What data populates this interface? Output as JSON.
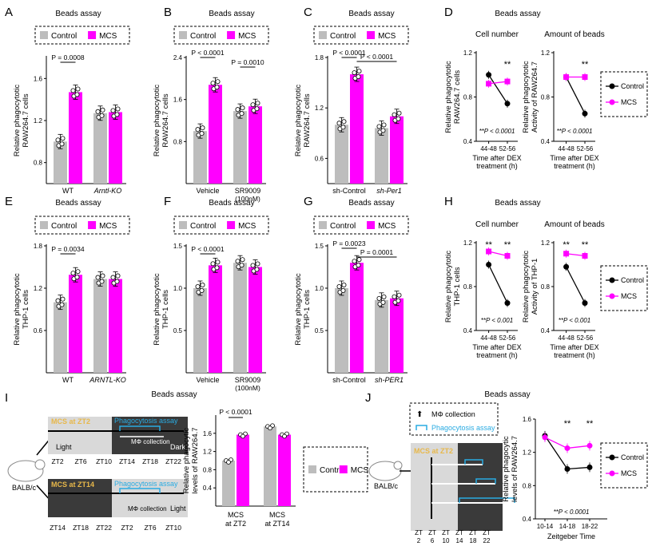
{
  "colors": {
    "control": "#bdbdbd",
    "mcs": "#ff00ff",
    "dark": "#3a3a3a",
    "light": "#d9d9d9",
    "cyan": "#29abe2",
    "gold": "#e8b84a"
  },
  "legend": {
    "control": "Control",
    "mcs": "MCS"
  },
  "panels": {
    "A": {
      "letter": "A",
      "title": "Beads assay",
      "ylabel1": "Relative phagocytotic",
      "ylabel2": "RAW264.7 cells",
      "xlabels": [
        "WT",
        "Arntl-KO"
      ],
      "ticks": [
        "0.8",
        "1.2",
        "1.6"
      ],
      "ylim": [
        0.6,
        1.8
      ],
      "sig": [
        "P = 0.0008"
      ]
    },
    "B": {
      "letter": "B",
      "title": "Beads assay",
      "ylabel1": "Relative phagocytotic",
      "ylabel2": "RAW264.7 cells",
      "xlabels": [
        "Vehicle",
        "SR9009"
      ],
      "xsub": "(100nM)",
      "ticks": [
        "0.8",
        "1.6",
        "2.4"
      ],
      "ylim": [
        0,
        2.4
      ],
      "sig": [
        "P < 0.0001",
        "P = 0.0010"
      ]
    },
    "C": {
      "letter": "C",
      "title": "Beads assay",
      "ylabel1": "Relative phagocytotic",
      "ylabel2": "RAW264.7 cells",
      "xlabels": [
        "sh-Control",
        "sh-Per1"
      ],
      "ticks": [
        "0.6",
        "1.2",
        "1.8"
      ],
      "ylim": [
        0.3,
        1.8
      ],
      "sig": [
        "P < 0.0001",
        "P < 0.0001"
      ]
    },
    "D": {
      "letter": "D",
      "title": "Beads assay",
      "left_title": "Cell number",
      "right_title": "Amount of beads",
      "left_ylabel1": "Relative phagocytotic",
      "left_ylabel2": "RAW264.7 cells",
      "right_ylabel1": "Relative phagocytotic",
      "right_ylabel2": "Activity of RAW264.7",
      "ticks": [
        "0.4",
        "0.8",
        "1.2"
      ],
      "xticks": [
        "44-48",
        "52-56"
      ],
      "xlabel1": "Time after DEX",
      "xlabel2": "treatment (h)",
      "stars": "**",
      "pnote": "**P < 0.0001"
    },
    "E": {
      "letter": "E",
      "title": "Beads assay",
      "ylabel1": "Relative phagocytotic",
      "ylabel2": "THP-1 cells",
      "xlabels": [
        "WT",
        "ARNTL-KO"
      ],
      "ticks": [
        "0.6",
        "1.2",
        "1.8"
      ],
      "ylim": [
        0,
        1.8
      ],
      "sig": [
        "P = 0.0034"
      ]
    },
    "F": {
      "letter": "F",
      "title": "Beads assay",
      "ylabel1": "Relative phagocytotic",
      "ylabel2": "THP-1  cells",
      "xlabels": [
        "Vehicle",
        "SR9009"
      ],
      "xsub": "(100nM)",
      "ticks": [
        "0.5",
        "1.0",
        "1.5"
      ],
      "ylim": [
        0,
        1.5
      ],
      "sig": [
        "P < 0.0001"
      ]
    },
    "G": {
      "letter": "G",
      "title": "Beads assay",
      "ylabel1": "Relative phagocytotic",
      "ylabel2": "THP-1  cells",
      "xlabels": [
        "sh-Control",
        "sh-PER1"
      ],
      "ticks": [
        "0.5",
        "1.0",
        "1.5"
      ],
      "ylim": [
        0,
        1.5
      ],
      "sig": [
        "P = 0.0023",
        "P = 0.0001"
      ]
    },
    "H": {
      "letter": "H",
      "title": "Beads assay",
      "left_title": "Cell number",
      "right_title": "Amount of beads",
      "left_ylabel1": "Relative phagocytotic",
      "left_ylabel2": "THP-1  cells",
      "right_ylabel1": "Relative phagocytotic",
      "right_ylabel2": "Activity of THP-1",
      "ticks": [
        "0.4",
        "0.8",
        "1.2"
      ],
      "xticks": [
        "44-48",
        "52-56"
      ],
      "xlabel1": "Time after DEX",
      "xlabel2": "treatment (h)",
      "stars": "**",
      "pnote": "**P < 0.001"
    },
    "I": {
      "letter": "I",
      "title": "Beads assay",
      "mouse": "BALB/c",
      "mcs_zt2": "MCS at ZT2",
      "mcs_zt14": "MCS at ZT14",
      "assay": "Phagocytosis assay",
      "collection": "MΦ collection",
      "light": "Light",
      "dark": "Dark",
      "zt_top": [
        "ZT2",
        "ZT6",
        "ZT10",
        "ZT14",
        "ZT18",
        "ZT22"
      ],
      "zt_bottom": [
        "ZT14",
        "ZT18",
        "ZT22",
        "ZT2",
        "ZT6",
        "ZT10"
      ],
      "ylabel1": "Relative phagocytic",
      "ylabel2": "levels of RAW264.7",
      "ticks": [
        "0.4",
        "0.8",
        "1.2",
        "1.6"
      ],
      "ylim": [
        0,
        2.0
      ],
      "xlabels": [
        "MCS",
        "MCS"
      ],
      "xsub": [
        "at ZT2",
        "at ZT14"
      ],
      "sig": [
        "P < 0.0001"
      ]
    },
    "J": {
      "letter": "J",
      "title": "Beads assay",
      "mouse": "BALB/c",
      "collection": "MΦ collection",
      "assay": "Phagocytosis assay",
      "mcs_zt2": "MCS at ZT2",
      "zt_top": [
        "ZT",
        "ZT",
        "ZT",
        "ZT",
        "ZT",
        "ZT"
      ],
      "zt_num": [
        "2",
        "6",
        "10",
        "14",
        "18",
        "22"
      ],
      "ylabel1": "Relative phagocytic",
      "ylabel2": "levels of RAW264.7",
      "ticks": [
        "0.4",
        "0.8",
        "1.2",
        "1.6"
      ],
      "xticks": [
        "10-14",
        "14-18",
        "18-22"
      ],
      "xlabel": "Zeitgeber Time",
      "stars": "**",
      "pnote": "**P < 0.0001"
    }
  },
  "chart_data": [
    {
      "panel": "A",
      "type": "bar",
      "categories": [
        "WT",
        "Arntl-KO"
      ],
      "series": [
        {
          "name": "Control",
          "values": [
            1.0,
            1.27
          ]
        },
        {
          "name": "MCS",
          "values": [
            1.47,
            1.28
          ]
        }
      ],
      "ylim": [
        0.6,
        1.8
      ]
    },
    {
      "panel": "B",
      "type": "bar",
      "categories": [
        "Vehicle",
        "SR9009 (100nM)"
      ],
      "series": [
        {
          "name": "Control",
          "values": [
            1.0,
            1.38
          ]
        },
        {
          "name": "MCS",
          "values": [
            1.88,
            1.47
          ]
        }
      ],
      "ylim": [
        0,
        2.4
      ]
    },
    {
      "panel": "C",
      "type": "bar",
      "categories": [
        "sh-Control",
        "sh-Per1"
      ],
      "series": [
        {
          "name": "Control",
          "values": [
            1.0,
            0.96
          ]
        },
        {
          "name": "MCS",
          "values": [
            1.6,
            1.1
          ]
        }
      ],
      "ylim": [
        0.3,
        1.8
      ]
    },
    {
      "panel": "D-left",
      "type": "line",
      "x": [
        "44-48",
        "52-56"
      ],
      "series": [
        {
          "name": "Control",
          "values": [
            1.0,
            0.74
          ]
        },
        {
          "name": "MCS",
          "values": [
            0.92,
            0.94
          ]
        }
      ],
      "ylim": [
        0.4,
        1.2
      ]
    },
    {
      "panel": "D-right",
      "type": "line",
      "x": [
        "44-48",
        "52-56"
      ],
      "series": [
        {
          "name": "Control",
          "values": [
            0.98,
            0.65
          ]
        },
        {
          "name": "MCS",
          "values": [
            0.98,
            0.98
          ]
        }
      ],
      "ylim": [
        0.4,
        1.2
      ]
    },
    {
      "panel": "E",
      "type": "bar",
      "categories": [
        "WT",
        "ARNTL-KO"
      ],
      "series": [
        {
          "name": "Control",
          "values": [
            1.0,
            1.33
          ]
        },
        {
          "name": "MCS",
          "values": [
            1.39,
            1.33
          ]
        }
      ],
      "ylim": [
        0,
        1.8
      ]
    },
    {
      "panel": "F",
      "type": "bar",
      "categories": [
        "Vehicle",
        "SR9009 (100nM)"
      ],
      "series": [
        {
          "name": "Control",
          "values": [
            1.0,
            1.3
          ]
        },
        {
          "name": "MCS",
          "values": [
            1.27,
            1.25
          ]
        }
      ],
      "ylim": [
        0,
        1.5
      ]
    },
    {
      "panel": "G",
      "type": "bar",
      "categories": [
        "sh-Control",
        "sh-PER1"
      ],
      "series": [
        {
          "name": "Control",
          "values": [
            1.0,
            0.86
          ]
        },
        {
          "name": "MCS",
          "values": [
            1.3,
            0.88
          ]
        }
      ],
      "ylim": [
        0,
        1.5
      ]
    },
    {
      "panel": "H-left",
      "type": "line",
      "x": [
        "44-48",
        "52-56"
      ],
      "series": [
        {
          "name": "Control",
          "values": [
            1.0,
            0.65
          ]
        },
        {
          "name": "MCS",
          "values": [
            1.12,
            1.08
          ]
        }
      ],
      "ylim": [
        0.4,
        1.2
      ]
    },
    {
      "panel": "H-right",
      "type": "line",
      "x": [
        "44-48",
        "52-56"
      ],
      "series": [
        {
          "name": "Control",
          "values": [
            0.98,
            0.65
          ]
        },
        {
          "name": "MCS",
          "values": [
            1.1,
            1.08
          ]
        }
      ],
      "ylim": [
        0.4,
        1.2
      ]
    },
    {
      "panel": "I",
      "type": "bar",
      "categories": [
        "MCS at ZT2",
        "MCS at ZT14"
      ],
      "series": [
        {
          "name": "Control",
          "values": [
            1.0,
            1.75
          ]
        },
        {
          "name": "MCS",
          "values": [
            1.57,
            1.57
          ]
        }
      ],
      "ylim": [
        0,
        2.0
      ]
    },
    {
      "panel": "J",
      "type": "line",
      "x": [
        "10-14",
        "14-18",
        "18-22"
      ],
      "series": [
        {
          "name": "Control",
          "values": [
            1.4,
            1.0,
            1.02
          ]
        },
        {
          "name": "MCS",
          "values": [
            1.38,
            1.25,
            1.28
          ]
        }
      ],
      "ylim": [
        0.4,
        1.6
      ],
      "xlabel": "Zeitgeber Time"
    }
  ]
}
